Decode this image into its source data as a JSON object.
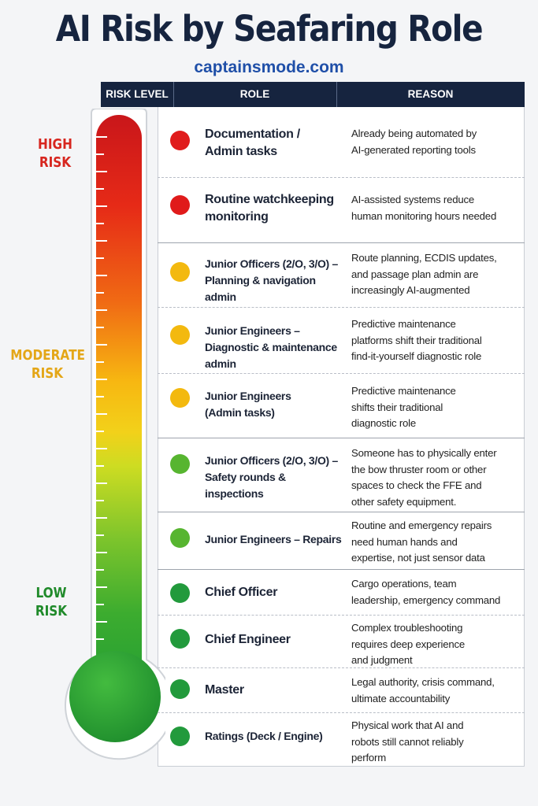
{
  "title": "AI Risk by Seafaring Role",
  "subtitle": "captainsmode.com",
  "headers": {
    "risk_level": "Risk Level",
    "role": "Role",
    "reason": "Reason"
  },
  "risk_levels": {
    "high": {
      "line1": "HIGH",
      "line2": "RISK",
      "color": "#d7261f"
    },
    "moderate": {
      "line1": "MODERATE",
      "line2": "RISK",
      "color": "#e4a617"
    },
    "low": {
      "line1": "LOW",
      "line2": "RISK",
      "color": "#1f8a2a"
    }
  },
  "colors": {
    "red": "#e01b1b",
    "yellow": "#f3b90f",
    "green_light": "#57b530",
    "green_dark": "#229a3c",
    "header_bg": "#16243f"
  },
  "rows": [
    {
      "role": "Documentation / Admin tasks",
      "role_lines": [
        "Documentation /",
        "Admin tasks"
      ],
      "reason_lines": [
        "Already being automated by",
        "AI-generated reporting tools"
      ],
      "risk": "high",
      "dot_color": "#e01b1b"
    },
    {
      "role": "Routine watchkeeping monitoring",
      "role_lines": [
        "Routine watchkeeping",
        "monitoring"
      ],
      "reason_lines": [
        "AI-assisted systems reduce",
        "human monitoring hours needed"
      ],
      "risk": "high",
      "dot_color": "#e01b1b"
    },
    {
      "role": "Junior Officers (2/O, 3/O) – Planning & navigation admin",
      "role_lines": [
        "Junior Officers (2/O, 3/O) –",
        "Planning & navigation admin"
      ],
      "reason_lines": [
        "Route planning, ECDIS updates,",
        "and passage plan admin are",
        "increasingly AI-augmented"
      ],
      "risk": "moderate",
      "dot_color": "#f3b90f"
    },
    {
      "role": "Junior Engineers – Diagnostic & maintenance admin",
      "role_lines": [
        "Junior Engineers –",
        "Diagnostic & maintenance admin"
      ],
      "reason_lines": [
        "Predictive maintenance",
        "platforms shift their traditional",
        "find-it-yourself diagnostic role"
      ],
      "risk": "moderate",
      "dot_color": "#f3b90f"
    },
    {
      "role": "Junior Engineers (Admin tasks)",
      "role_lines": [
        "Junior Engineers",
        "(Admin tasks)"
      ],
      "reason_lines": [
        "Predictive maintenance",
        "shifts their traditional",
        "diagnostic role"
      ],
      "risk": "moderate",
      "dot_color": "#f3b90f"
    },
    {
      "role": "Junior Officers (2/O, 3/O) – Safety rounds & inspections",
      "role_lines": [
        "Junior Officers (2/O, 3/O) –",
        "Safety rounds & inspections"
      ],
      "reason_lines": [
        "Someone has to physically enter",
        "the bow thruster room or other",
        "spaces to check the FFE and",
        "other safety equipment."
      ],
      "risk": "low",
      "dot_color": "#57b530"
    },
    {
      "role": "Junior Engineers – Repairs",
      "role_lines": [
        "Junior Engineers – Repairs"
      ],
      "reason_lines": [
        "Routine and emergency repairs",
        "need human hands and",
        "expertise, not just sensor data"
      ],
      "risk": "low",
      "dot_color": "#57b530"
    },
    {
      "role": "Chief Officer",
      "role_lines": [
        "Chief Officer"
      ],
      "reason_lines": [
        "Cargo operations, team",
        "leadership, emergency command"
      ],
      "risk": "low",
      "dot_color": "#229a3c"
    },
    {
      "role": "Chief Engineer",
      "role_lines": [
        "Chief Engineer"
      ],
      "reason_lines": [
        "Complex troubleshooting",
        "requires deep experience",
        "and judgment"
      ],
      "risk": "low",
      "dot_color": "#229a3c"
    },
    {
      "role": "Master",
      "role_lines": [
        "Master"
      ],
      "reason_lines": [
        "Legal authority, crisis command,",
        "ultimate accountability"
      ],
      "risk": "low",
      "dot_color": "#229a3c"
    },
    {
      "role": "Ratings (Deck / Engine)",
      "role_lines": [
        "Ratings (Deck / Engine)"
      ],
      "reason_lines": [
        "Physical work that AI and",
        "robots still cannot reliably",
        "perform"
      ],
      "risk": "low",
      "dot_color": "#229a3c"
    }
  ]
}
